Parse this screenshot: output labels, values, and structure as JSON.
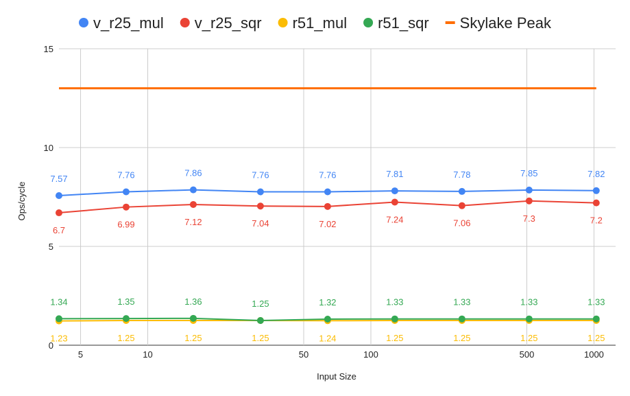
{
  "chart_data": {
    "type": "line",
    "x_scale": "log",
    "xlabel": "Input Size",
    "ylabel": "Ops/cycle",
    "ylim": [
      0,
      15
    ],
    "xlim": [
      4,
      1250
    ],
    "x_ticks": [
      5,
      10,
      50,
      100,
      500,
      1000
    ],
    "y_ticks": [
      0,
      5,
      10,
      15
    ],
    "grid": true,
    "legend_position": "top",
    "x": [
      4,
      8,
      16,
      32,
      64,
      128,
      256,
      512,
      1024
    ],
    "series": [
      {
        "name": "v_r25_mul",
        "color": "#4285F4",
        "marker": "circle",
        "label_position": "above",
        "values": [
          7.57,
          7.76,
          7.86,
          7.76,
          7.76,
          7.81,
          7.78,
          7.85,
          7.82
        ],
        "labels": [
          "7.57",
          "7.76",
          "7.86",
          "7.76",
          "7.76",
          "7.81",
          "7.78",
          "7.85",
          "7.82"
        ]
      },
      {
        "name": "v_r25_sqr",
        "color": "#EA4335",
        "marker": "circle",
        "label_position": "below",
        "values": [
          6.7,
          6.99,
          7.12,
          7.04,
          7.02,
          7.24,
          7.06,
          7.3,
          7.2
        ],
        "labels": [
          "6.7",
          "6.99",
          "7.12",
          "7.04",
          "7.02",
          "7.24",
          "7.06",
          "7.3",
          "7.2"
        ]
      },
      {
        "name": "r51_mul",
        "color": "#FBBC04",
        "marker": "circle",
        "label_position": "below",
        "values": [
          1.23,
          1.25,
          1.25,
          1.25,
          1.24,
          1.25,
          1.25,
          1.25,
          1.25
        ],
        "labels": [
          "1.23",
          "1.25",
          "1.25",
          "1.25",
          "1.24",
          "1.25",
          "1.25",
          "1.25",
          "1.25"
        ]
      },
      {
        "name": "r51_sqr",
        "color": "#34A853",
        "marker": "circle",
        "label_position": "above",
        "values": [
          1.34,
          1.35,
          1.36,
          1.25,
          1.32,
          1.33,
          1.33,
          1.33,
          1.33
        ],
        "labels": [
          "1.34",
          "1.35",
          "1.36",
          "1.25",
          "1.32",
          "1.33",
          "1.33",
          "1.33",
          "1.33"
        ]
      },
      {
        "name": "Skylake Peak",
        "color": "#FF6D01",
        "marker": "none",
        "values": [
          13,
          13,
          13,
          13,
          13,
          13,
          13,
          13,
          13
        ]
      }
    ]
  }
}
